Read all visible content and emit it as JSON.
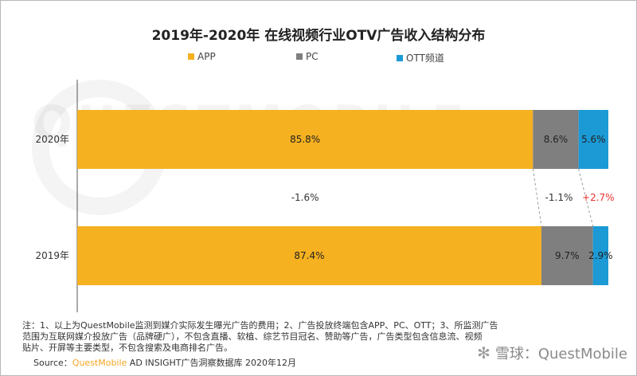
{
  "title": "2019年-2020年 在线视频行业OTV广告收入结构分布",
  "legend": [
    {
      "label": "APP",
      "color": "#f5b120"
    },
    {
      "label": "PC",
      "color": "#7f7f7f"
    },
    {
      "label": "OTT频道",
      "color": "#1b9ad6"
    }
  ],
  "watermark_text": "QUESTMOBILE",
  "chart_data": {
    "type": "bar",
    "orientation": "horizontal",
    "stacked": true,
    "percent_stacked": true,
    "categories": [
      "2020年",
      "2019年"
    ],
    "series": [
      {
        "name": "APP",
        "values": [
          85.8,
          87.4
        ],
        "labels": [
          "85.8%",
          "87.4%"
        ],
        "color": "#f5b120"
      },
      {
        "name": "PC",
        "values": [
          8.6,
          9.7
        ],
        "labels": [
          "8.6%",
          "9.7%"
        ],
        "color": "#7f7f7f"
      },
      {
        "name": "OTT频道",
        "values": [
          5.6,
          2.9
        ],
        "labels": [
          "5.6%",
          "2.9%"
        ],
        "color": "#1b9ad6"
      }
    ],
    "changes": [
      {
        "series": "APP",
        "label": "-1.6%",
        "color": "#333333"
      },
      {
        "series": "PC",
        "label": "-1.1%",
        "color": "#333333"
      },
      {
        "series": "OTT频道",
        "label": "+2.7%",
        "color": "#e8322c"
      }
    ],
    "xlim": [
      0,
      100
    ],
    "grid": false,
    "legend_position": "top"
  },
  "notes": [
    "注：1、以上为QuestMobile监测到媒介实际发生曝光广告的费用；2、广告投放终端包含APP、PC、OTT；3、所监测广告",
    "范围为互联网媒介投放广告（品牌硬广），不包含直播、软植、综艺节目冠名、赞助等广告，广告类型包含信息流、视频",
    "贴片、开屏等主要类型，不包含搜索及电商排名广告。"
  ],
  "source": {
    "prefix": "Source：",
    "brand": "QuestMobile",
    "rest": " AD INSIGHT广告洞察数据库 2020年12月"
  },
  "corner_logo": {
    "glyph": "✻",
    "text": "雪球：QuestMobile"
  }
}
